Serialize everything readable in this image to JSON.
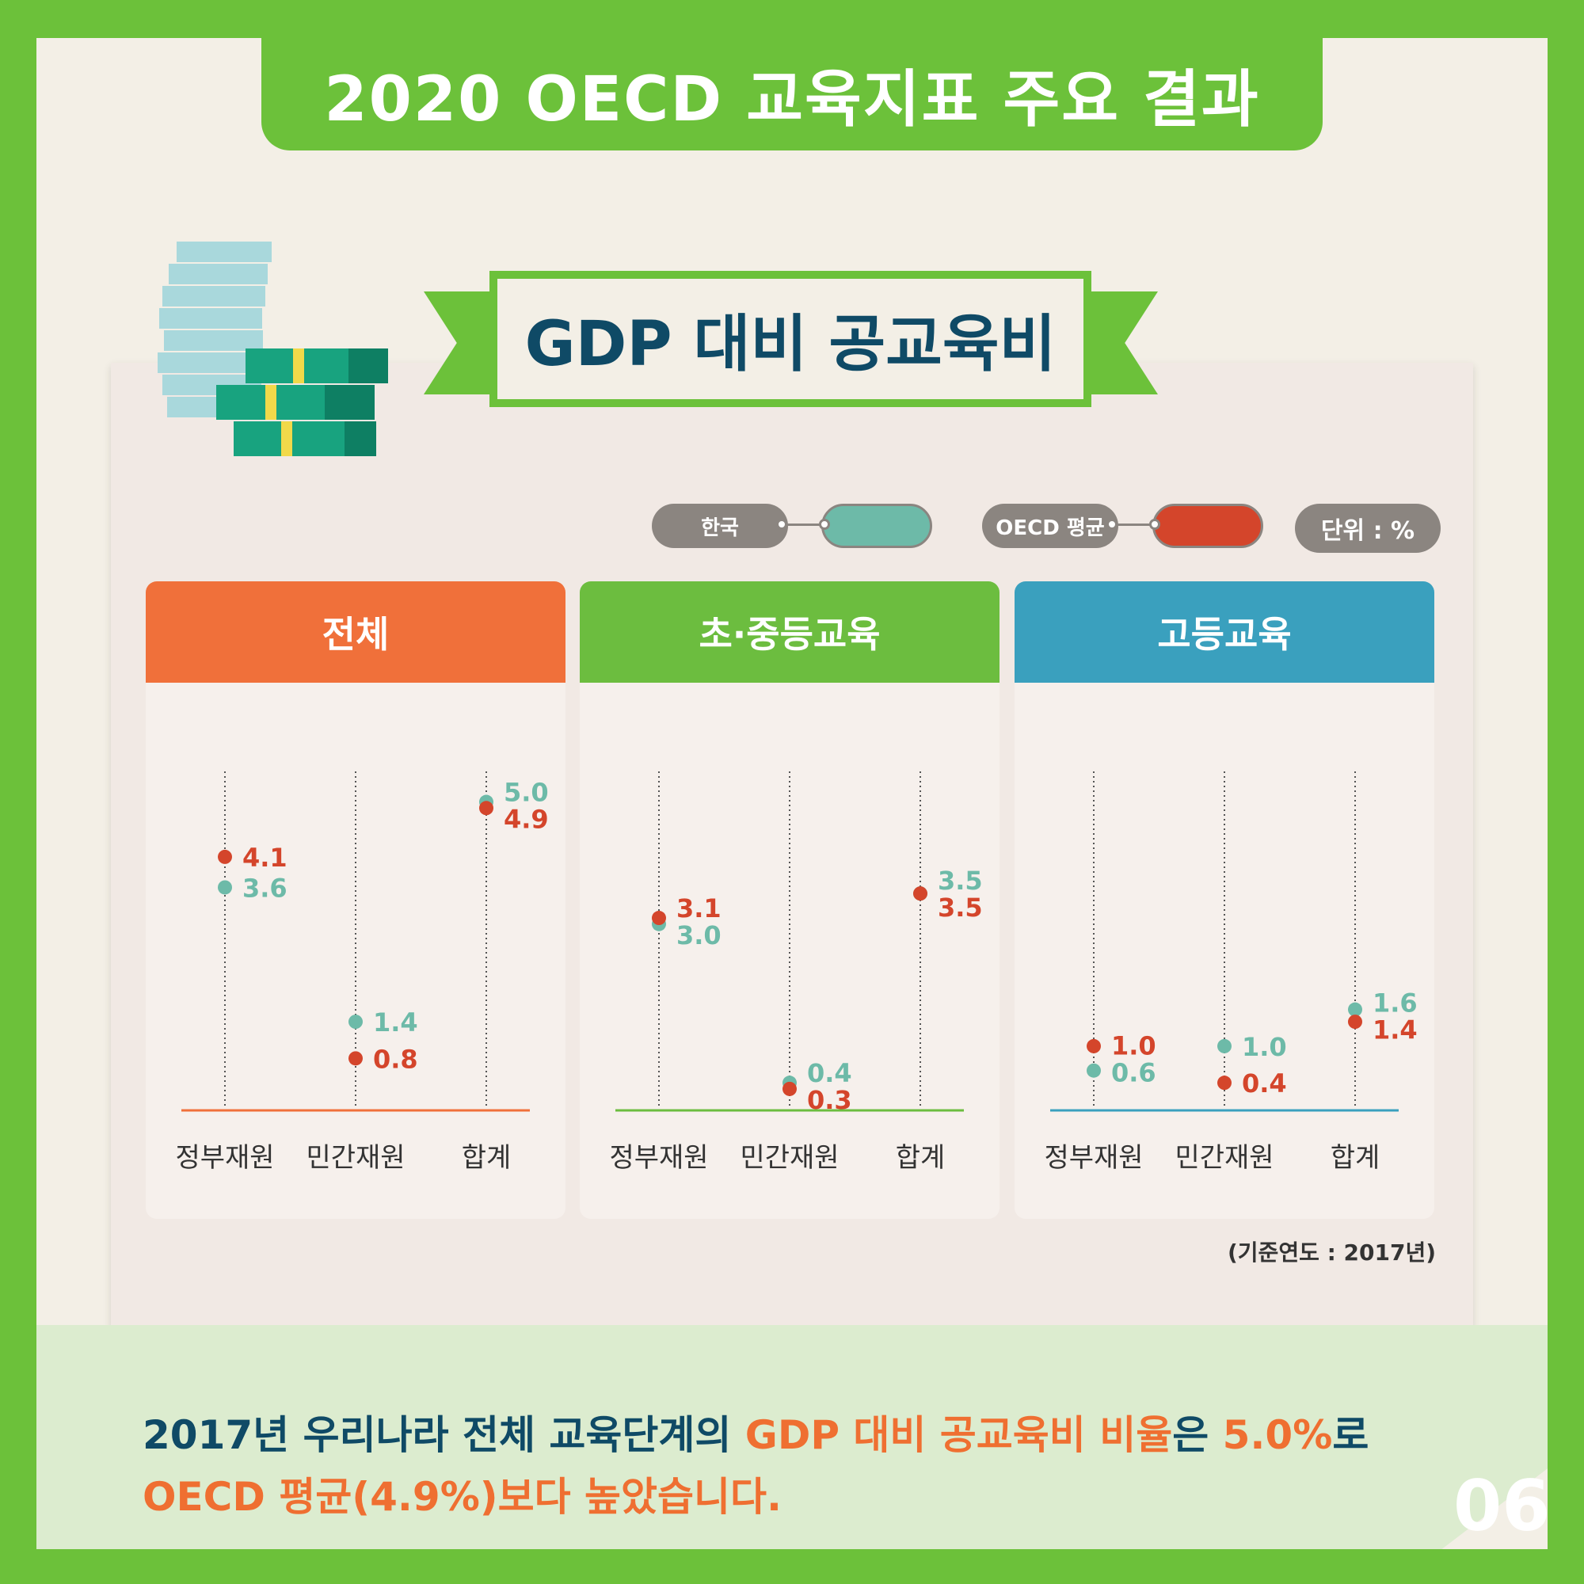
{
  "header": {
    "title": "2020 OECD 교육지표 주요 결과"
  },
  "ribbon": {
    "title": "GDP 대비 공교육비"
  },
  "legend": {
    "korea_label": "한국",
    "oecd_label": "OECD 평균",
    "unit": "단위 : %",
    "korea_color": "#6dbaa8",
    "oecd_color": "#d4452b"
  },
  "chart_data": [
    {
      "type": "dot",
      "title": "전체",
      "header_color": "#f0703a",
      "axis_color": "#f0703a",
      "categories": [
        "정부재원",
        "민간재원",
        "합계"
      ],
      "series": [
        {
          "name": "한국",
          "values": [
            3.6,
            1.4,
            5.0
          ]
        },
        {
          "name": "OECD 평균",
          "values": [
            4.1,
            0.8,
            4.9
          ]
        }
      ]
    },
    {
      "type": "dot",
      "title": "초·중등교육",
      "header_color": "#6cbd3f",
      "axis_color": "#6cbd3f",
      "categories": [
        "정부재원",
        "민간재원",
        "합계"
      ],
      "series": [
        {
          "name": "한국",
          "values": [
            3.0,
            0.4,
            3.5
          ]
        },
        {
          "name": "OECD 평균",
          "values": [
            3.1,
            0.3,
            3.5
          ]
        }
      ]
    },
    {
      "type": "dot",
      "title": "고등교육",
      "header_color": "#3aa0be",
      "axis_color": "#3aa0be",
      "categories": [
        "정부재원",
        "민간재원",
        "합계"
      ],
      "series": [
        {
          "name": "한국",
          "values": [
            0.6,
            1.0,
            1.6
          ]
        },
        {
          "name": "OECD 평균",
          "values": [
            1.0,
            0.4,
            1.4
          ]
        }
      ]
    }
  ],
  "basis_year": "(기준연도 : 2017년)",
  "summary": {
    "l1a": "2017년 우리나라 전체 교육단계의 ",
    "l1b": "GDP 대비 공교육비 비율",
    "l1c": "은 ",
    "l1d": "5.0%",
    "l1e": "로",
    "l2": "OECD 평균(4.9%)보다 높았습니다."
  },
  "page_number": "06"
}
